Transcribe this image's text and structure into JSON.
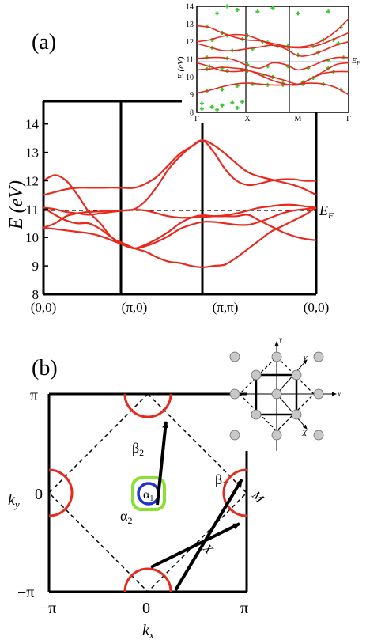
{
  "chart_data": [
    {
      "panel": "(a)",
      "type": "line",
      "ylabel": "E (eV)",
      "ylim": [
        8,
        14.8
      ],
      "yticks": [
        "8",
        "9",
        "10",
        "11",
        "12",
        "13",
        "14"
      ],
      "x_ticks": [
        "(0,0)",
        "(π,0)",
        "(π,π)",
        "(0,0)"
      ],
      "fermi_label": "E",
      "fermi_sub": "F",
      "fermi_level": 11.0,
      "x": [
        0,
        0.125,
        0.25,
        0.375,
        0.5,
        0.625,
        0.75,
        0.875,
        1,
        1.125,
        1.25,
        1.375,
        1.5,
        1.625,
        1.75,
        1.875,
        2,
        2.125,
        2.25,
        2.375,
        2.5,
        2.625,
        2.75,
        2.875,
        3
      ],
      "series": [
        {
          "values": [
            12.0,
            12.2,
            12.0,
            11.5,
            10.9,
            10.5,
            10.0,
            9.8,
            9.62,
            9.5,
            9.3,
            9.15,
            9.1,
            9.0,
            8.95,
            9.0,
            9.05,
            9.3,
            9.6,
            9.9,
            10.2,
            10.4,
            10.6,
            10.8,
            11.05
          ]
        },
        {
          "values": [
            11.5,
            11.6,
            11.7,
            11.75,
            11.75,
            11.75,
            11.76,
            11.75,
            11.75,
            11.9,
            12.15,
            12.55,
            12.95,
            13.2,
            13.42,
            13.25,
            12.95,
            12.6,
            12.3,
            12.15,
            12.05,
            11.95,
            11.85,
            11.7,
            11.5
          ]
        },
        {
          "values": [
            11.05,
            11.0,
            10.9,
            10.85,
            10.8,
            10.85,
            10.9,
            10.95,
            11.0,
            11.3,
            11.8,
            12.4,
            12.85,
            13.2,
            13.42,
            13.0,
            12.4,
            12.0,
            11.85,
            11.9,
            12.0,
            12.05,
            12.05,
            12.0,
            12.0
          ]
        },
        {
          "values": [
            11.05,
            10.8,
            10.6,
            10.5,
            10.5,
            10.3,
            10.0,
            9.75,
            9.62,
            9.7,
            9.85,
            10.05,
            10.3,
            10.45,
            10.55,
            10.55,
            10.5,
            10.45,
            10.45,
            10.55,
            10.7,
            10.85,
            10.95,
            11.0,
            11.05
          ]
        },
        {
          "values": [
            10.35,
            10.3,
            10.25,
            10.2,
            10.15,
            10.05,
            9.9,
            9.75,
            9.62,
            9.75,
            9.95,
            10.2,
            10.5,
            10.7,
            10.78,
            10.75,
            10.75,
            10.75,
            10.8,
            10.6,
            10.4,
            10.2,
            10.05,
            9.95,
            9.9
          ]
        },
        {
          "values": [
            10.35,
            10.5,
            10.75,
            10.85,
            10.9,
            10.92,
            10.95,
            10.95,
            10.98,
            10.95,
            10.85,
            10.75,
            10.7,
            10.7,
            10.72,
            10.75,
            10.78,
            10.85,
            10.95,
            11.05,
            11.1,
            11.15,
            11.15,
            11.1,
            11.05
          ]
        }
      ]
    },
    {
      "panel": "(a) inset",
      "type": "line",
      "ylabel": "E (eV)",
      "ylim": [
        8,
        14
      ],
      "yticks": [
        "8",
        "9",
        "10",
        "11",
        "12",
        "13",
        "14"
      ],
      "x_ticks": [
        "Γ",
        "X",
        "M",
        "Γ"
      ],
      "fermi_label": "E",
      "fermi_sub": "F",
      "fermi_level": 10.7,
      "x": [
        0,
        0.25,
        0.5,
        0.75,
        1,
        1.25,
        1.5,
        1.75,
        2,
        2.25,
        2.5,
        2.75,
        3
      ],
      "series": [
        {
          "values": [
            12.9,
            12.8,
            12.5,
            12.25,
            12.1,
            12.05,
            11.9,
            11.75,
            11.7,
            11.8,
            12.1,
            12.6,
            13.3
          ]
        },
        {
          "values": [
            12.0,
            12.1,
            12.3,
            12.4,
            12.35,
            12.1,
            11.8,
            11.7,
            11.65,
            11.7,
            11.9,
            12.2,
            12.5
          ]
        },
        {
          "values": [
            11.9,
            11.7,
            11.5,
            11.5,
            11.6,
            11.7,
            11.8,
            11.6,
            11.2,
            11.25,
            11.5,
            11.8,
            12.0
          ]
        },
        {
          "values": [
            11.05,
            11.1,
            11.1,
            10.95,
            10.65,
            10.5,
            10.8,
            10.7,
            10.4,
            10.6,
            10.9,
            11.1,
            11.1
          ]
        },
        {
          "values": [
            10.8,
            10.6,
            10.35,
            10.3,
            10.35,
            10.2,
            10.0,
            9.8,
            9.6,
            9.9,
            10.3,
            10.7,
            10.8
          ]
        },
        {
          "values": [
            10.4,
            10.45,
            10.55,
            10.5,
            10.4,
            10.1,
            9.8,
            9.6,
            9.55,
            9.9,
            10.2,
            10.3,
            10.3
          ]
        },
        {
          "values": [
            9.1,
            9.25,
            9.45,
            9.6,
            9.65,
            9.6,
            9.55,
            9.55,
            9.6,
            9.65,
            9.6,
            9.4,
            9.0
          ]
        }
      ],
      "dft_points": [
        [
          0.1,
          8.2
        ],
        [
          0.3,
          8.3
        ],
        [
          0.5,
          8.4
        ],
        [
          0.7,
          8.55
        ],
        [
          0.9,
          8.6
        ],
        [
          0.1,
          8.5
        ],
        [
          0.4,
          8.15
        ],
        [
          0.8,
          8.25
        ],
        [
          0.2,
          9.2
        ],
        [
          0.5,
          9.3
        ],
        [
          0.8,
          9.5
        ],
        [
          1.1,
          9.6
        ],
        [
          1.4,
          9.55
        ],
        [
          1.7,
          9.55
        ],
        [
          2.1,
          9.6
        ],
        [
          2.5,
          9.6
        ],
        [
          2.85,
          9.3
        ],
        [
          0.2,
          10.45
        ],
        [
          0.5,
          10.5
        ],
        [
          0.9,
          10.4
        ],
        [
          1.3,
          10.1
        ],
        [
          1.7,
          9.65
        ],
        [
          2.3,
          9.95
        ],
        [
          2.7,
          10.3
        ],
        [
          0.25,
          10.6
        ],
        [
          0.6,
          10.35
        ],
        [
          1.0,
          10.35
        ],
        [
          1.5,
          10.0
        ],
        [
          2.1,
          9.7
        ],
        [
          2.6,
          10.5
        ],
        [
          0.2,
          11.1
        ],
        [
          0.6,
          11.05
        ],
        [
          1.0,
          10.7
        ],
        [
          1.4,
          10.6
        ],
        [
          1.8,
          10.6
        ],
        [
          2.2,
          10.5
        ],
        [
          2.6,
          10.95
        ],
        [
          2.9,
          11.1
        ],
        [
          0.3,
          11.65
        ],
        [
          0.7,
          11.5
        ],
        [
          1.1,
          11.6
        ],
        [
          1.6,
          11.75
        ],
        [
          2.0,
          11.25
        ],
        [
          2.4,
          11.4
        ],
        [
          2.8,
          11.9
        ],
        [
          0.3,
          12.1
        ],
        [
          0.6,
          12.35
        ],
        [
          1.0,
          12.35
        ],
        [
          1.4,
          11.95
        ],
        [
          1.8,
          11.7
        ],
        [
          2.3,
          11.75
        ],
        [
          2.7,
          12.1
        ],
        [
          0.2,
          12.85
        ],
        [
          0.5,
          12.5
        ],
        [
          0.9,
          12.15
        ],
        [
          1.3,
          12.0
        ],
        [
          1.8,
          11.75
        ],
        [
          2.5,
          12.1
        ],
        [
          2.85,
          12.8
        ],
        [
          0.4,
          13.6
        ],
        [
          0.8,
          13.8
        ],
        [
          1.2,
          13.7
        ],
        [
          2.0,
          13.6
        ],
        [
          2.6,
          13.7
        ],
        [
          0.6,
          14.0
        ],
        [
          1.5,
          13.9
        ]
      ]
    },
    {
      "panel": "(b)",
      "type": "diagram",
      "xlabel": "k",
      "xlabel_sub": "x",
      "ylabel": "k",
      "ylabel_sub": "y",
      "xticks": [
        "−π",
        "0",
        "π"
      ],
      "yticks": [
        "−π",
        "0",
        "π"
      ],
      "labels": {
        "alpha1": "α",
        "alpha1_sub": "1",
        "alpha2": "α",
        "alpha2_sub": "2",
        "beta1": "β",
        "beta1_sub": "1",
        "beta2": "β",
        "beta2_sub": "2",
        "M": "M",
        "X": "X"
      },
      "inset_labels": {
        "x": "x",
        "y": "y",
        "X": "X",
        "Y": "Y"
      }
    }
  ],
  "panel_labels": {
    "a": "(a)",
    "b": "(b)"
  },
  "colors": {
    "band": "#e8291e",
    "dft": "#3cc832",
    "alpha1": "#2233cc",
    "alpha2": "#88e030",
    "gray_atom": "#c8c8c8"
  }
}
